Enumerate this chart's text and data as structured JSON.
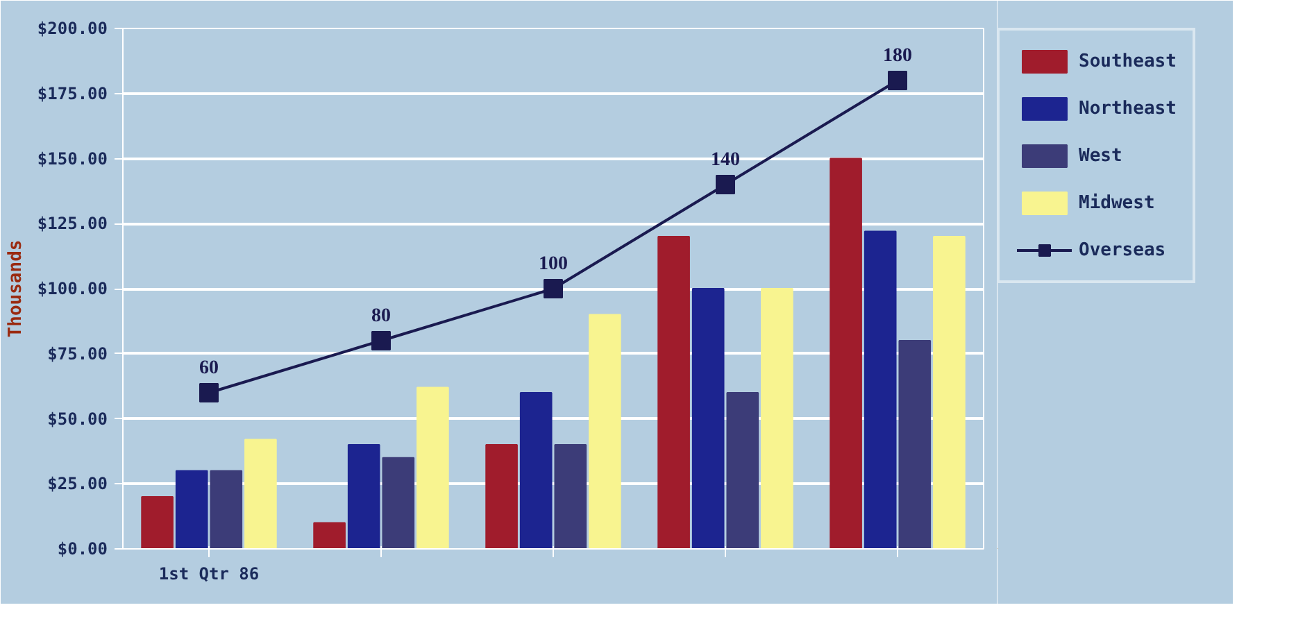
{
  "chart_data": {
    "type": "bar",
    "ylabel": "Thousands",
    "categories": [
      "1st Qtr 86",
      null,
      null,
      null,
      null
    ],
    "series": [
      {
        "name": "Southeast",
        "color": "#a01c2c",
        "values": [
          20,
          10,
          40,
          120,
          150
        ]
      },
      {
        "name": "Northeast",
        "color": "#1c2490",
        "values": [
          30,
          40,
          60,
          100,
          122
        ]
      },
      {
        "name": "West",
        "color": "#3c3c78",
        "values": [
          30,
          35,
          40,
          60,
          80
        ]
      },
      {
        "name": "Midwest",
        "color": "#f8f490",
        "values": [
          42,
          62,
          90,
          100,
          120
        ]
      },
      {
        "name": "Overseas",
        "type": "line",
        "color": "#1a1a50",
        "marker": "square",
        "values": [
          60,
          80,
          100,
          140,
          180
        ],
        "value_labels": [
          "60",
          "80",
          "100",
          "140",
          "180"
        ]
      }
    ],
    "ylim": [
      0,
      200
    ],
    "yticks": [
      {
        "value": 0,
        "label": "$0.00"
      },
      {
        "value": 25,
        "label": "$25.00"
      },
      {
        "value": 50,
        "label": "$50.00"
      },
      {
        "value": 75,
        "label": "$75.00"
      },
      {
        "value": 100,
        "label": "$100.00"
      },
      {
        "value": 125,
        "label": "$125.00"
      },
      {
        "value": 150,
        "label": "$150.00"
      },
      {
        "value": 175,
        "label": "$175.00"
      },
      {
        "value": 200,
        "label": "$200.00"
      }
    ],
    "grid": "y",
    "legend": "right"
  }
}
